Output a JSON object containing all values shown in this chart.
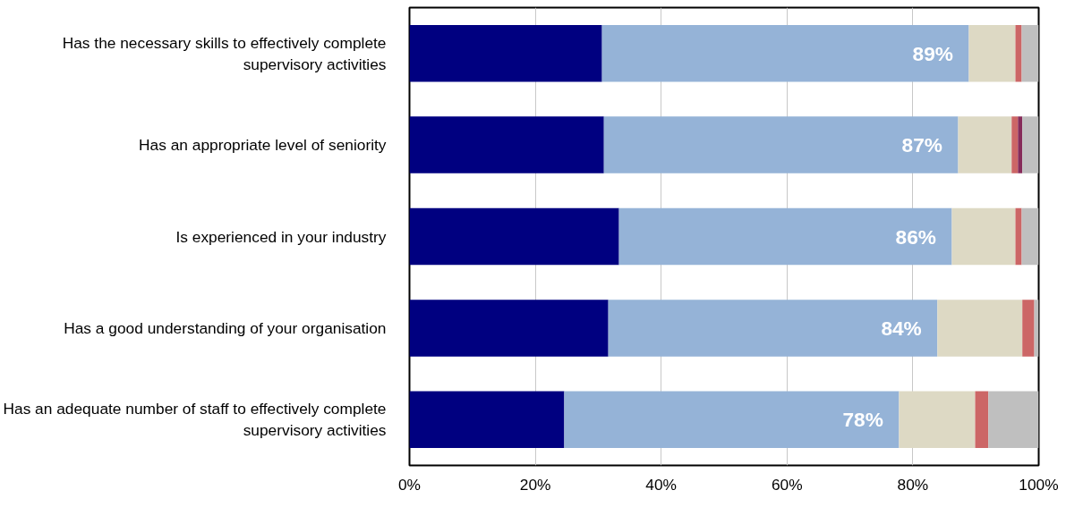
{
  "chart_data": {
    "type": "bar",
    "orientation": "horizontal",
    "stacked": true,
    "categories": [
      "Has the necessary skills to effectively complete supervisory activities",
      "Has an appropriate level of seniority",
      "Is experienced in your industry",
      "Has a good understanding of your organisation",
      "Has an adequate number of staff to effectively complete supervisory activities"
    ],
    "series": [
      {
        "color": "#000080",
        "values": [
          30.6,
          30.9,
          33.3,
          31.6,
          24.6
        ]
      },
      {
        "color": "#95b3d7",
        "values": [
          58.3,
          56.3,
          52.9,
          52.3,
          53.2
        ]
      },
      {
        "color": "#ddd9c4",
        "values": [
          7.4,
          8.5,
          10.1,
          13.5,
          12.1
        ]
      },
      {
        "color": "#cc6666",
        "values": [
          1.0,
          1.0,
          1.0,
          1.9,
          2.1
        ]
      },
      {
        "color": "#862b5a",
        "values": [
          0,
          0.7,
          0,
          0,
          0
        ]
      },
      {
        "color": "#bfbfbf",
        "values": [
          2.7,
          2.6,
          2.7,
          0.7,
          8.0
        ]
      }
    ],
    "xlim": [
      0,
      100
    ],
    "xticks": [
      {
        "value": 0,
        "label": "0%"
      },
      {
        "value": 20,
        "label": "20%"
      },
      {
        "value": 40,
        "label": "40%"
      },
      {
        "value": 60,
        "label": "60%"
      },
      {
        "value": 80,
        "label": "80%"
      },
      {
        "value": 100,
        "label": "100%"
      }
    ],
    "grid": "x",
    "annotations": [
      {
        "text": "89%",
        "x": 88.9,
        "y": "Has the necessary skills to effectively complete supervisory activities"
      },
      {
        "text": "87%",
        "x": 87.2,
        "y": "Has an appropriate level of seniority"
      },
      {
        "text": "86%",
        "x": 86.2,
        "y": "Is experienced in your industry"
      },
      {
        "text": "84%",
        "x": 83.9,
        "y": "Has a good understanding of your organisation"
      },
      {
        "text": "78%",
        "x": 77.8,
        "y": "Has an adequate number of staff to effectively complete supervisory activities"
      }
    ]
  }
}
